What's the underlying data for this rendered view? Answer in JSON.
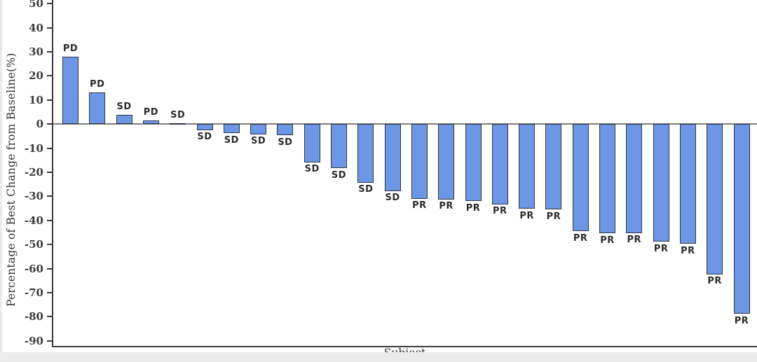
{
  "chart_data": {
    "type": "bar",
    "subtype": "waterfall",
    "title": "",
    "xlabel": "Subject",
    "ylabel": "Percentage of Best Change from Baseline(%)",
    "ylim": [
      -90,
      50
    ],
    "ytick_step": 10,
    "yticks": [
      50,
      40,
      30,
      20,
      10,
      0,
      -10,
      -20,
      -30,
      -40,
      -50,
      -60,
      -70,
      -80,
      -90
    ],
    "legend": "none",
    "grid": "off",
    "x_tick_labels": "none",
    "bars": [
      {
        "label": "PD",
        "value": 28
      },
      {
        "label": "PD",
        "value": 13
      },
      {
        "label": "SD",
        "value": 3.8
      },
      {
        "label": "PD",
        "value": 1.5
      },
      {
        "label": "SD",
        "value": 0.3
      },
      {
        "label": "SD",
        "value": -2.5
      },
      {
        "label": "SD",
        "value": -3.8
      },
      {
        "label": "SD",
        "value": -4.3
      },
      {
        "label": "SD",
        "value": -4.7
      },
      {
        "label": "SD",
        "value": -15.8
      },
      {
        "label": "SD",
        "value": -18.3
      },
      {
        "label": "SD",
        "value": -24.3
      },
      {
        "label": "SD",
        "value": -27.8
      },
      {
        "label": "PR",
        "value": -31.0
      },
      {
        "label": "PR",
        "value": -31.3
      },
      {
        "label": "PR",
        "value": -32.0
      },
      {
        "label": "PR",
        "value": -33.3
      },
      {
        "label": "PR",
        "value": -35.2
      },
      {
        "label": "PR",
        "value": -35.5
      },
      {
        "label": "PR",
        "value": -44.5
      },
      {
        "label": "PR",
        "value": -45.4
      },
      {
        "label": "PR",
        "value": -45.2
      },
      {
        "label": "PR",
        "value": -48.8
      },
      {
        "label": "PR",
        "value": -49.7
      },
      {
        "label": "PR",
        "value": -62.4
      },
      {
        "label": "PR",
        "value": -78.8
      }
    ],
    "colors": {
      "bar_fill": "#6D96E5",
      "bar_border": "#2E3545",
      "axis_line": "#3b3b3b",
      "zero_line": "#7d7d7d",
      "tick_text": "#3a3a3a",
      "page_edge": "#ebebeb"
    }
  }
}
